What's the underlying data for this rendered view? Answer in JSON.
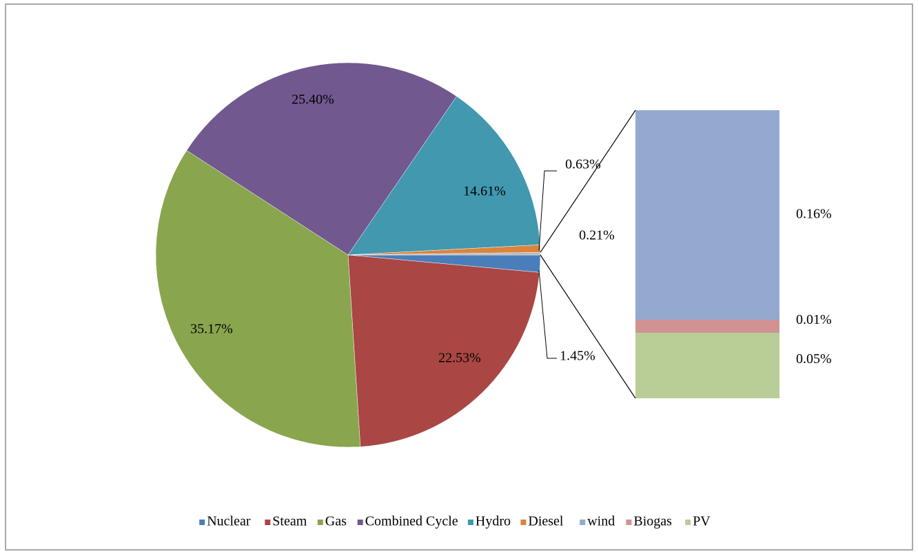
{
  "chart_data": {
    "type": "pie_of_bar",
    "categories": [
      "Nuclear",
      "Steam",
      "Gas",
      "Combined Cycle",
      "Hydro",
      "Diesel",
      "wind",
      "Biogas",
      "PV"
    ],
    "values": [
      1.45,
      22.53,
      35.17,
      25.4,
      14.61,
      0.63,
      0.16,
      0.01,
      0.05
    ],
    "value_labels": [
      "1.45%",
      "22.53%",
      "35.17%",
      "25.40%",
      "14.61%",
      "0.63%",
      "0.16%",
      "0.01%",
      "0.05%"
    ],
    "colors": [
      "#4a7ebb",
      "#aa4643",
      "#89a54e",
      "#71588f",
      "#4198af",
      "#db843d",
      "#93a9cf",
      "#d19392",
      "#b9cd96"
    ],
    "secondary_count": 3,
    "other_value": 0.21,
    "other_value_label": "0.21%",
    "other_color": "#b7b7b7",
    "legend": "bottom"
  }
}
